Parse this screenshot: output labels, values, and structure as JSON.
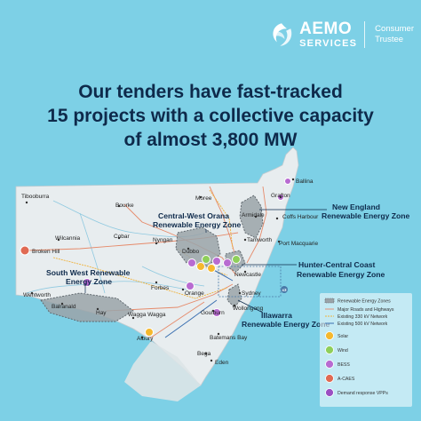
{
  "brand": {
    "name": "AEMO",
    "sub": "SERVICES",
    "trustee_line1": "Consumer",
    "trustee_line2": "Trustee"
  },
  "headline": {
    "line1": "Our tenders have fast-tracked",
    "line2": "15 projects with a collective capacity",
    "line3": "of almost 3,800 MW"
  },
  "map": {
    "places": {
      "tibooburra": "Tibooburra",
      "bourke": "Bourke",
      "moree": "Moree",
      "ballina": "Ballina",
      "grafton": "Grafton",
      "armidale": "Armidale",
      "coffs_harbour": "Coffs Harbour",
      "wilcannia": "Wilcannia",
      "cobar": "Cobar",
      "nyngan": "Nyngan",
      "tamworth": "Tamworth",
      "port_macquarie": "Port Macquarie",
      "broken_hill": "Broken Hill",
      "dubbo": "Dubbo",
      "newcastle": "Newcastle",
      "orange": "Orange",
      "forbes": "Forbes",
      "sydney": "Sydney",
      "wentworth": "Wentworth",
      "balranald": "Balranald",
      "hay": "Hay",
      "goulburn": "Goulburn",
      "wollongong": "Wollongong",
      "wagga_wagga": "Wagga Wagga",
      "albury": "Albury",
      "batemans_bay": "Batemans Bay",
      "bega": "Bega",
      "eden": "Eden"
    },
    "zones": {
      "new_england_1": "New England",
      "new_england_2": "Renewable Energy Zone",
      "central_west_1": "Central-West Orana",
      "central_west_2": "Renewable Energy Zone",
      "hunter_1": "Hunter-Central Coast",
      "hunter_2": "Renewable Energy Zone",
      "south_west_1": "South West Renewable",
      "south_west_2": "Energy Zone",
      "illawarra_1": "Illawarra",
      "illawarra_2": "Renewable Energy Zone"
    },
    "inset_badge": "x3",
    "legend": {
      "rez": "Renewable Energy Zones",
      "roads": "Major Roads and Highways",
      "kv330": "Existing 330 kV Network",
      "kv500": "Existing 500 kV Network",
      "solar": "Solar",
      "wind": "Wind",
      "bess": "BESS",
      "acaes": "A-CAES",
      "vpp": "Demand response VPPs"
    }
  },
  "colors": {
    "background": "#7dd0e6",
    "headline": "#0e2a4b",
    "land": "#e8edef",
    "solar": "#f5b82e",
    "wind": "#8fcf5a",
    "bess": "#b86bd1",
    "acaes": "#e06a53",
    "vpp": "#9b4fc2"
  }
}
